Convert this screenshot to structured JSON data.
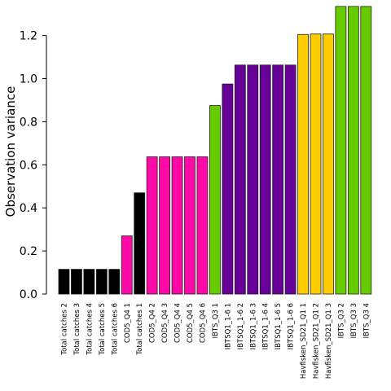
{
  "chart_data": {
    "type": "bar",
    "title": "",
    "xlabel": "",
    "ylabel": "Observation variance",
    "ylim": [
      0,
      1.35
    ],
    "yticks": [
      "0.0",
      "0.2",
      "0.4",
      "0.6",
      "0.8",
      "1.0",
      "1.2"
    ],
    "grid": false,
    "legend": "none",
    "categories": [
      "Total catches 2",
      "Total catches 3",
      "Total catches 4",
      "Total catches 5",
      "Total catches 6",
      "COD5_Q4 1",
      "Total catches 1",
      "COD5_Q4 2",
      "COD5_Q4 3",
      "COD5_Q4 4",
      "COD5_Q4 5",
      "COD5_Q4 6",
      "IBTS_Q3 1",
      "IBTSQ1_1-6 1",
      "IBTSQ1_1-6 2",
      "IBTSQ1_1-6 3",
      "IBTSQ1_1-6 4",
      "IBTSQ1_1-6 5",
      "IBTSQ1_1-6 6",
      "Havfisken_SD21_Q1 1",
      "Havfisken_SD21_Q1 2",
      "Havfisken_SD21_Q1 3",
      "IBTS_Q3 2",
      "IBTS_Q3 3",
      "IBTS_Q3 4"
    ],
    "values": [
      0.115,
      0.115,
      0.115,
      0.115,
      0.115,
      0.27,
      0.47,
      0.637,
      0.637,
      0.637,
      0.637,
      0.637,
      0.875,
      0.975,
      1.063,
      1.063,
      1.063,
      1.063,
      1.063,
      1.205,
      1.207,
      1.207,
      1.335,
      1.335,
      1.335
    ],
    "colors": [
      "#000000",
      "#000000",
      "#000000",
      "#000000",
      "#000000",
      "#ff0aa6",
      "#000000",
      "#ff0aa6",
      "#ff0aa6",
      "#ff0aa6",
      "#ff0aa6",
      "#ff0aa6",
      "#66cc00",
      "#660099",
      "#660099",
      "#660099",
      "#660099",
      "#660099",
      "#660099",
      "#ffcc00",
      "#ffcc00",
      "#ffcc00",
      "#66cc00",
      "#66cc00",
      "#66cc00"
    ]
  }
}
